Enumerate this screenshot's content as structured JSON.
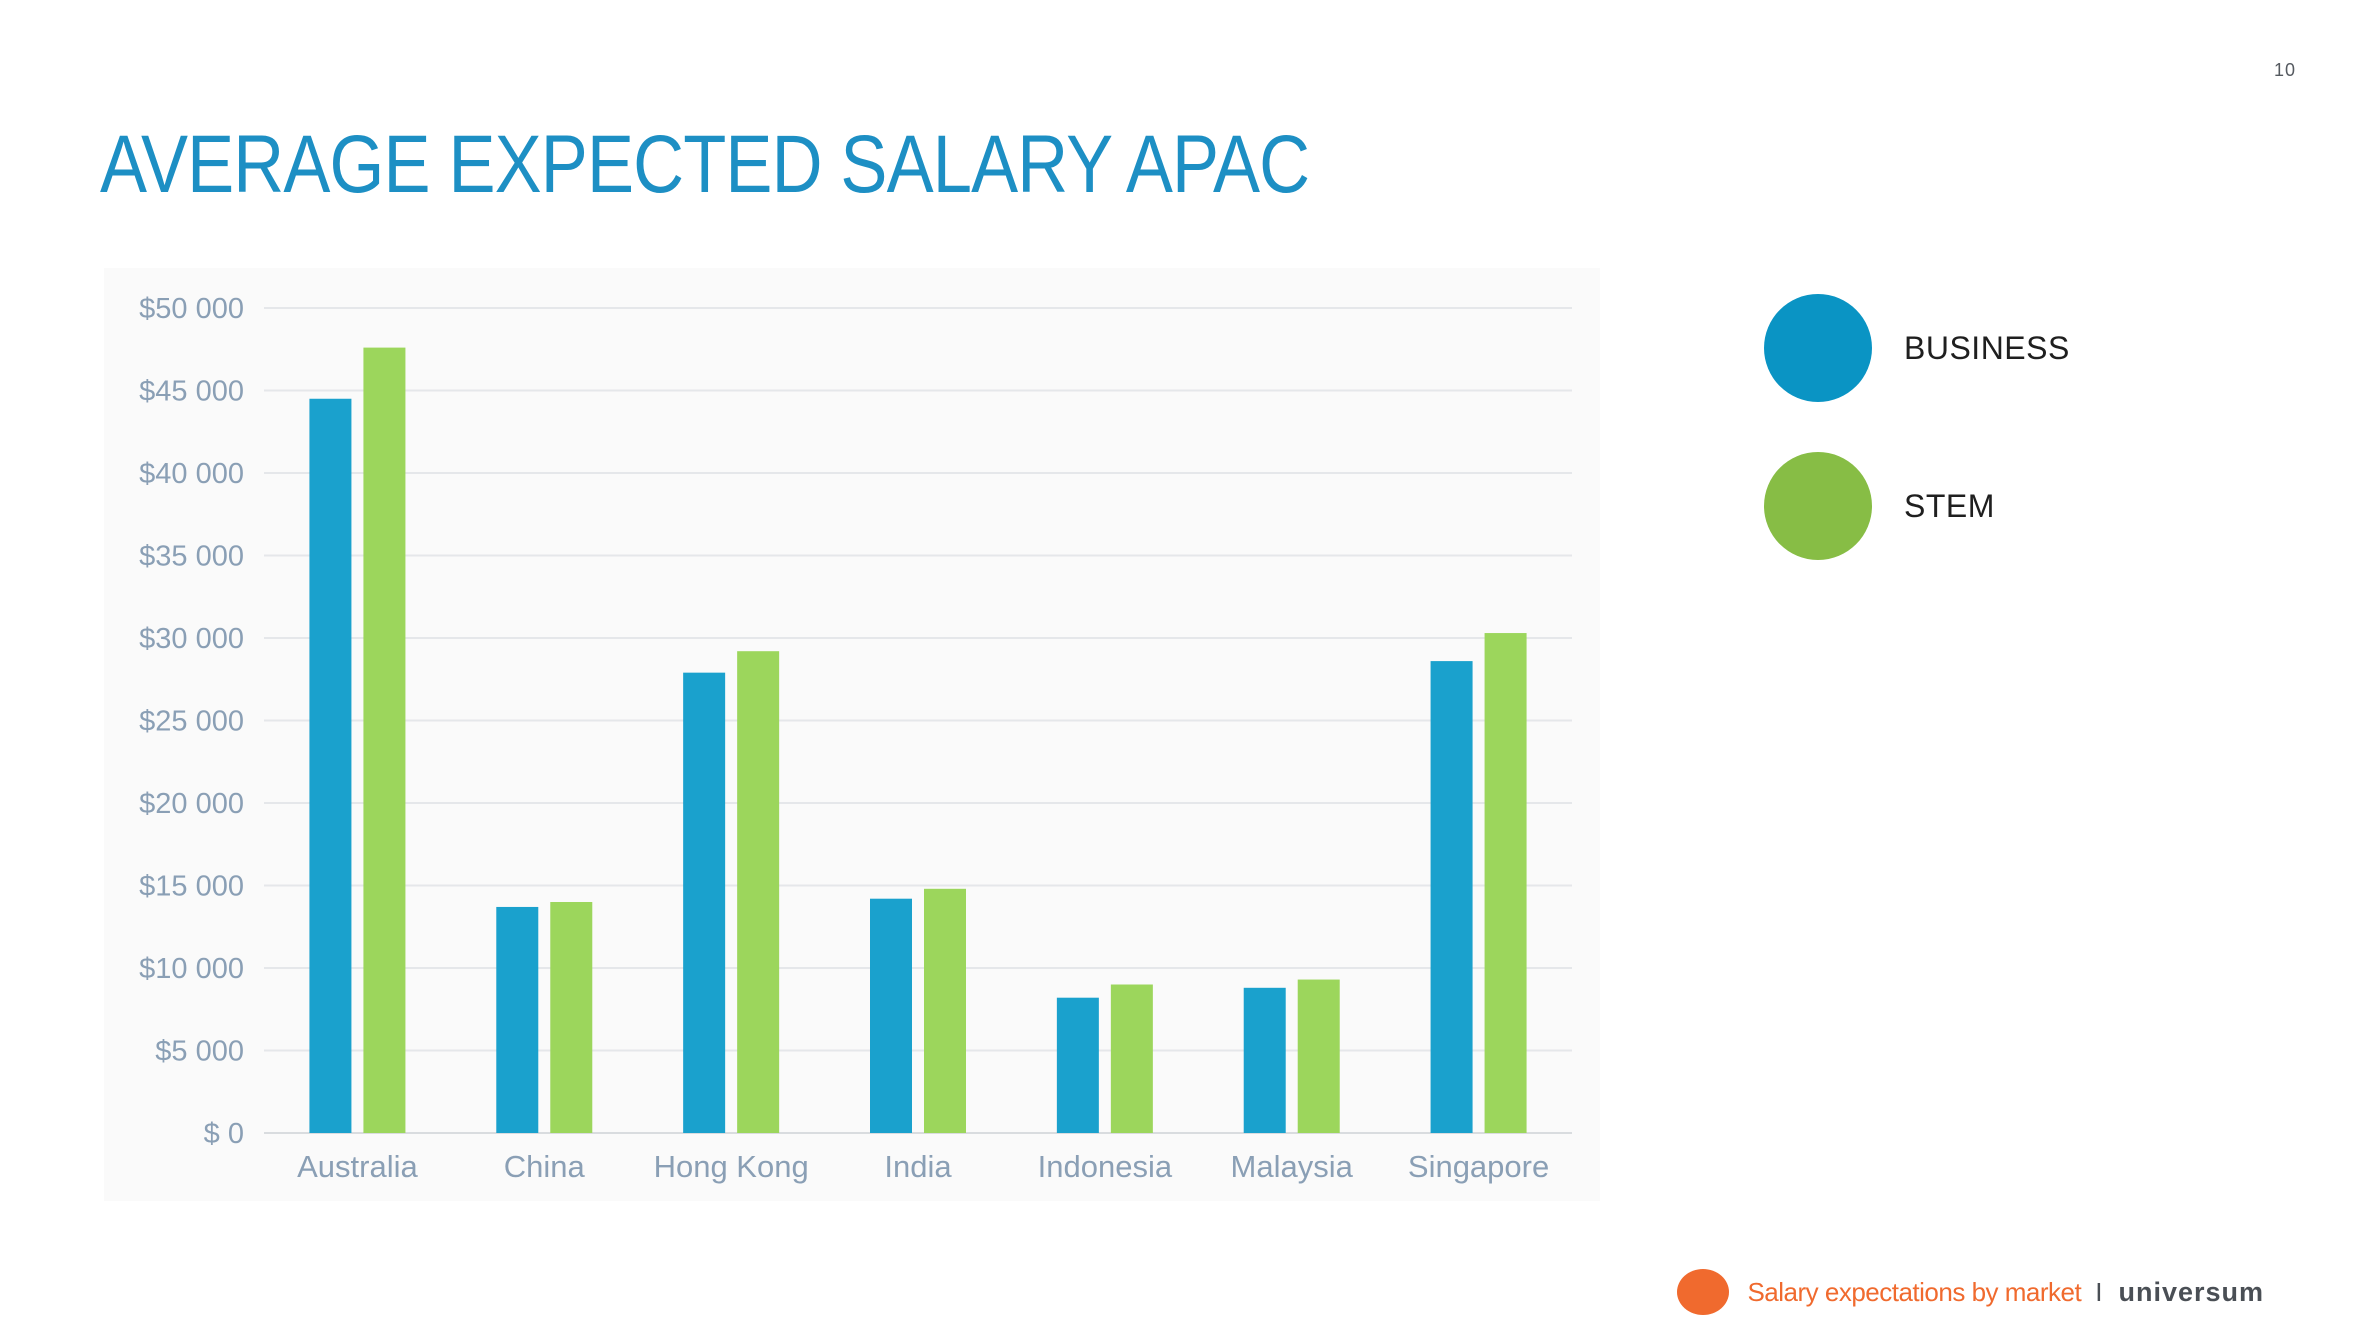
{
  "page": {
    "number": "10",
    "title": "AVERAGE EXPECTED SALARY APAC"
  },
  "colors": {
    "title": "#1d8fc4",
    "business": "#1aa1cd",
    "stem": "#9cd65c",
    "legend_business": "#0a94c4",
    "legend_stem": "#87bd45",
    "accent": "#f06a2e"
  },
  "legend": {
    "items": [
      {
        "label": "BUSINESS",
        "color": "#0a94c4"
      },
      {
        "label": "STEM",
        "color": "#87bd45"
      }
    ]
  },
  "footer": {
    "caption": "Salary expectations by market",
    "separator": "I",
    "brand": "universum"
  },
  "chart_data": {
    "type": "bar",
    "title": "",
    "xlabel": "",
    "ylabel": "",
    "categories": [
      "Australia",
      "China",
      "Hong Kong",
      "India",
      "Indonesia",
      "Malaysia",
      "Singapore"
    ],
    "series": [
      {
        "name": "BUSINESS",
        "values": [
          44500,
          13700,
          27900,
          14200,
          8200,
          8800,
          28600
        ]
      },
      {
        "name": "STEM",
        "values": [
          47600,
          14000,
          29200,
          14800,
          9000,
          9300,
          30300
        ]
      }
    ],
    "ylim": [
      0,
      50000
    ],
    "yticks": [
      0,
      5000,
      10000,
      15000,
      20000,
      25000,
      30000,
      35000,
      40000,
      45000,
      50000
    ],
    "ytick_labels": [
      "$ 0",
      "$5 000",
      "$10 000",
      "$15 000",
      "$20 000",
      "$25 000",
      "$30 000",
      "$35 000",
      "$40 000",
      "$45 000",
      "$50 000"
    ],
    "grid": true,
    "legend_position": "right"
  }
}
